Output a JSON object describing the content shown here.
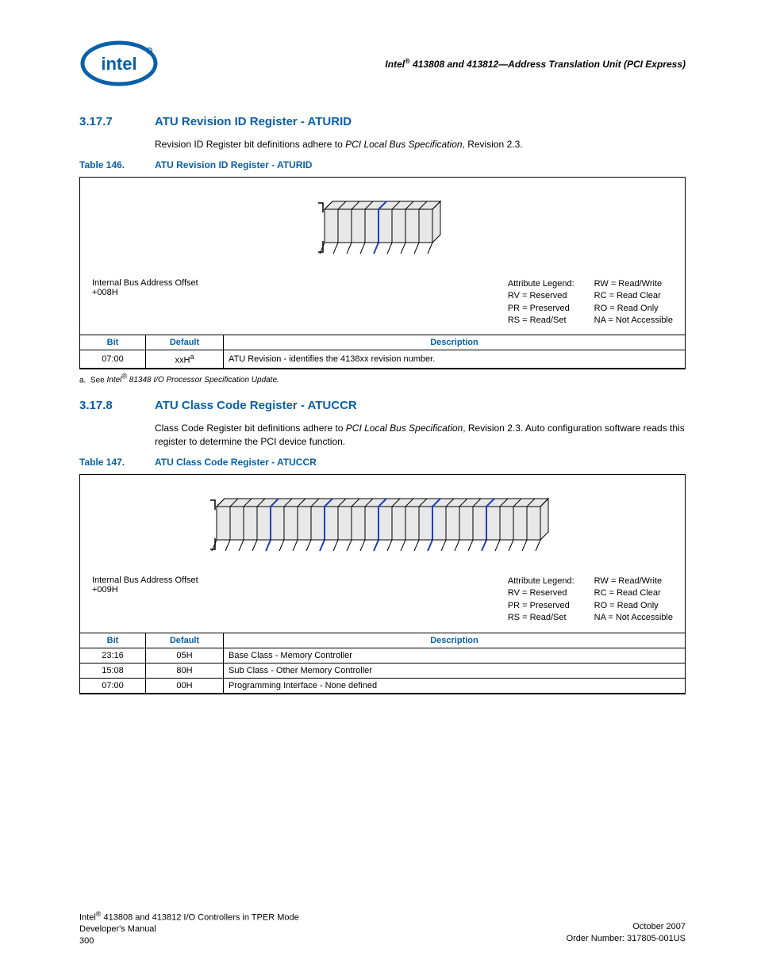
{
  "header": {
    "title_prefix": "Intel",
    "title_rest": " 413808 and 413812—Address Translation Unit (PCI Express)",
    "reg_mark": "®"
  },
  "section1": {
    "num": "3.17.7",
    "title": "ATU Revision ID Register - ATURID",
    "body_pre": "Revision ID Register bit definitions adhere to ",
    "body_ital": "PCI Local Bus Specification",
    "body_post": ", Revision 2.3."
  },
  "table1": {
    "caption_num": "Table 146.",
    "caption_title": "ATU Revision ID Register - ATURID",
    "offset_label": "Internal Bus Address Offset",
    "offset_value": "+008H",
    "legend_title": "Attribute Legend:",
    "legend_left": [
      "RV = Reserved",
      "PR = Preserved",
      "RS = Read/Set"
    ],
    "legend_right": [
      "RW = Read/Write",
      "RC = Read Clear",
      "RO = Read Only",
      "NA = Not Accessible"
    ],
    "headers": {
      "bit": "Bit",
      "default": "Default",
      "desc": "Description"
    },
    "rows": [
      {
        "bit": "07:00",
        "default": "xxH",
        "default_sup": "a",
        "desc": "ATU Revision - identifies the 4138xx revision number."
      }
    ],
    "footnote_label": "a.",
    "footnote_pre": "See ",
    "footnote_ital": "Intel",
    "footnote_reg": "®",
    "footnote_post": " 81348 I/O Processor Specification Update.",
    "diagram": {
      "bits": 8,
      "highlight": [
        4
      ],
      "stroke": "#000000",
      "highlight_color": "#1f3fbf",
      "fill": "#e8e8e8"
    }
  },
  "section2": {
    "num": "3.17.8",
    "title": "ATU Class Code Register - ATUCCR",
    "body_pre": "Class Code Register bit definitions adhere to ",
    "body_ital": "PCI Local Bus Specification",
    "body_post": ", Revision 2.3. Auto configuration software reads this register to determine the PCI device function."
  },
  "table2": {
    "caption_num": "Table 147.",
    "caption_title": "ATU Class Code Register - ATUCCR",
    "offset_label": "Internal Bus Address Offset",
    "offset_value": "+009H",
    "legend_title": "Attribute Legend:",
    "legend_left": [
      "RV = Reserved",
      "PR = Preserved",
      "RS = Read/Set"
    ],
    "legend_right": [
      "RW = Read/Write",
      "RC = Read Clear",
      "RO = Read Only",
      "NA = Not Accessible"
    ],
    "headers": {
      "bit": "Bit",
      "default": "Default",
      "desc": "Description"
    },
    "rows": [
      {
        "bit": "23:16",
        "default": "05H",
        "desc": "Base Class - Memory Controller"
      },
      {
        "bit": "15:08",
        "default": "80H",
        "desc": "Sub Class - Other Memory Controller"
      },
      {
        "bit": "07:00",
        "default": "00H",
        "desc": "Programming Interface - None defined"
      }
    ],
    "diagram": {
      "bits": 24,
      "highlight": [
        4,
        8,
        12,
        16,
        20
      ],
      "stroke": "#000000",
      "highlight_color": "#1f3fbf",
      "fill": "#e8e8e8"
    }
  },
  "footer": {
    "left1_pre": "Intel",
    "left1_reg": "®",
    "left1_post": " 413808 and 413812 I/O Controllers in TPER Mode",
    "left2": "Developer's Manual",
    "left3": "300",
    "right1": "October 2007",
    "right2": "Order Number: 317805-001US"
  },
  "colors": {
    "brand": "#0860a8",
    "text": "#000000",
    "diagram_fill": "#e8e8e8",
    "highlight": "#1f3fbf"
  }
}
